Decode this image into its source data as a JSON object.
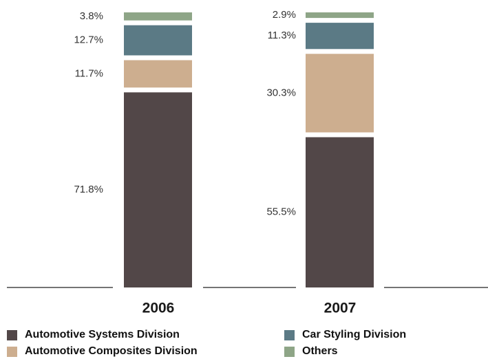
{
  "chart_data": {
    "type": "bar",
    "stacked": true,
    "unit": "%",
    "categories": [
      "2006",
      "2007"
    ],
    "series": [
      {
        "name": "Automotive Systems Division",
        "values": [
          71.8,
          55.5
        ],
        "labels": [
          "71.8%",
          "55.5%"
        ],
        "color": "#524748"
      },
      {
        "name": "Automotive Composites Division",
        "values": [
          11.7,
          30.3
        ],
        "labels": [
          "11.7%",
          "30.3%"
        ],
        "color": "#cdae8f"
      },
      {
        "name": "Car Styling Division",
        "values": [
          12.7,
          11.3
        ],
        "labels": [
          "12.7%",
          "11.3%"
        ],
        "color": "#5b7a85"
      },
      {
        "name": "Others",
        "values": [
          3.8,
          2.9
        ],
        "labels": [
          "3.8%",
          "2.9%"
        ],
        "color": "#8ea587"
      }
    ],
    "ylim": [
      0,
      100
    ],
    "legend_position": "bottom",
    "grid": false,
    "title": "",
    "xlabel": "",
    "ylabel": ""
  },
  "legend": {
    "items": [
      {
        "label": "Automotive Systems Division",
        "color": "#524748"
      },
      {
        "label": "Car Styling Division",
        "color": "#5b7a85"
      },
      {
        "label": "Automotive Composites Division",
        "color": "#cdae8f"
      },
      {
        "label": "Others",
        "color": "#8ea587"
      }
    ]
  }
}
